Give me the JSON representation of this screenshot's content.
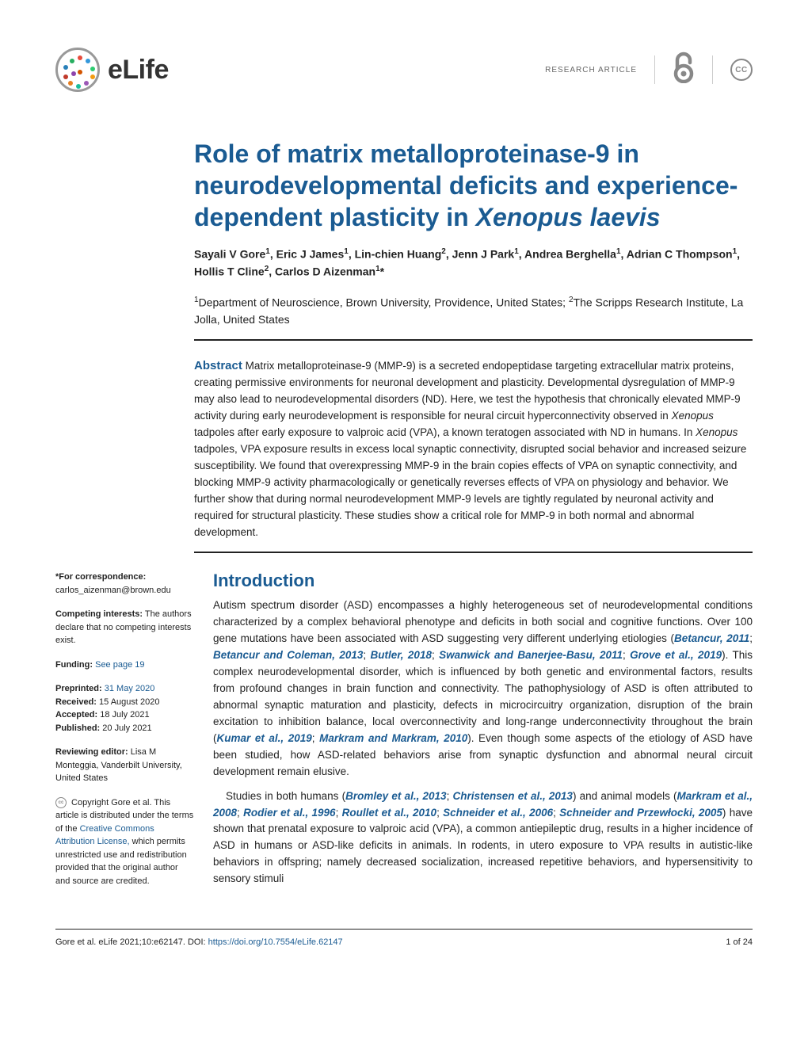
{
  "header": {
    "journal_name": "eLife",
    "article_type": "RESEARCH ARTICLE",
    "cc_label": "CC",
    "logo_colors": [
      "#e74c3c",
      "#3498db",
      "#2ecc71",
      "#f39c12",
      "#9b59b6",
      "#1abc9c",
      "#e67e22",
      "#c0392b",
      "#2980b9",
      "#27ae60",
      "#d35400",
      "#8e44ad"
    ]
  },
  "title": {
    "main": "Role of matrix metalloproteinase-9 in neurodevelopmental deficits and experience-dependent plasticity in ",
    "italic": "Xenopus laevis"
  },
  "authors_html": "Sayali V Gore<sup>1</sup>, Eric J James<sup>1</sup>, Lin-chien Huang<sup>2</sup>, Jenn J Park<sup>1</sup>, Andrea Berghella<sup>1</sup>, Adrian C Thompson<sup>1</sup>, Hollis T Cline<sup>2</sup>, Carlos D Aizenman<sup>1</sup>*",
  "affiliations_html": "<sup>1</sup>Department of Neuroscience, Brown University, Providence, United States; <sup>2</sup>The Scripps Research Institute, La Jolla, United States",
  "abstract": {
    "label": "Abstract",
    "text_1": " Matrix metalloproteinase-9 (MMP-9) is a secreted endopeptidase targeting extracellular matrix proteins, creating permissive environments for neuronal development and plasticity. Developmental dysregulation of MMP-9 may also lead to neurodevelopmental disorders (ND). Here, we test the hypothesis that chronically elevated MMP-9 activity during early neurodevelopment is responsible for neural circuit hyperconnectivity observed in ",
    "italic_1": "Xenopus",
    "text_2": " tadpoles after early exposure to valproic acid (VPA), a known teratogen associated with ND in humans. In ",
    "italic_2": "Xenopus",
    "text_3": " tadpoles, VPA exposure results in excess local synaptic connectivity, disrupted social behavior and increased seizure susceptibility. We found that overexpressing MMP-9 in the brain copies effects of VPA on synaptic connectivity, and blocking MMP-9 activity pharmacologically or genetically reverses effects of VPA on physiology and behavior. We further show that during normal neurodevelopment MMP-9 levels are tightly regulated by neuronal activity and required for structural plasticity. These studies show a critical role for MMP-9 in both normal and abnormal development."
  },
  "sidebar": {
    "correspondence_label": "*For correspondence:",
    "correspondence_value": "carlos_aizenman@brown.edu",
    "competing_label": "Competing interests:",
    "competing_value": " The authors declare that no competing interests exist.",
    "funding_label": "Funding:",
    "funding_link": " See page 19",
    "preprinted_label": "Preprinted:",
    "preprinted_value": " 31 May 2020",
    "received_label": "Received:",
    "received_value": " 15 August 2020",
    "accepted_label": "Accepted:",
    "accepted_value": " 18 July 2021",
    "published_label": "Published:",
    "published_value": " 20 July 2021",
    "reviewing_label": "Reviewing editor:",
    "reviewing_value": "  Lisa M Monteggia, Vanderbilt University, United States",
    "copyright_text_1": " Copyright Gore et al. This article is distributed under the terms of the ",
    "copyright_link": "Creative Commons Attribution License,",
    "copyright_text_2": " which permits unrestricted use and redistribution provided that the original author and source are credited.",
    "cc_badge": "cc"
  },
  "intro": {
    "heading": "Introduction",
    "p1_a": "Autism spectrum disorder (ASD) encompasses a highly heterogeneous set of neurodevelopmental conditions characterized by a complex behavioral phenotype and deficits in both social and cognitive functions. Over 100 gene mutations have been associated with ASD suggesting very different underlying etiologies (",
    "p1_c1": "Betancur, 2011",
    "p1_b": "; ",
    "p1_c2": "Betancur and Coleman, 2013",
    "p1_c": "; ",
    "p1_c3": "Butler, 2018",
    "p1_d": "; ",
    "p1_c4": "Swanwick and Banerjee-Basu, 2011",
    "p1_e": "; ",
    "p1_c5": "Grove et al., 2019",
    "p1_f": "). This complex neurodevelopmental disorder, which is influenced by both genetic and environmental factors, results from profound changes in brain function and connectivity. The pathophysiology of ASD is often attributed to abnormal synaptic maturation and plasticity, defects in microcircuitry organization, disruption of the brain excitation to inhibition balance, local overconnectivity and long-range underconnectivity throughout the brain (",
    "p1_c6": "Kumar et al., 2019",
    "p1_g": "; ",
    "p1_c7": "Markram and Markram, 2010",
    "p1_h": "). Even though some aspects of the etiology of ASD have been studied, how ASD-related behaviors arise from synaptic dysfunction and abnormal neural circuit development remain elusive.",
    "p2_a": "Studies in both humans (",
    "p2_c1": "Bromley et al., 2013",
    "p2_b": "; ",
    "p2_c2": "Christensen et al., 2013",
    "p2_c": ") and animal models (",
    "p2_c3": "Markram et al., 2008",
    "p2_d": "; ",
    "p2_c4": "Rodier et al., 1996",
    "p2_e": "; ",
    "p2_c5": "Roullet et al., 2010",
    "p2_f": "; ",
    "p2_c6": "Schneider et al., 2006",
    "p2_g": "; ",
    "p2_c7": "Schneider and Przewłocki, 2005",
    "p2_h": ") have shown that prenatal exposure to valproic acid (VPA), a common antiepileptic drug, results in a higher incidence of ASD in humans or ASD-like deficits in animals. In rodents, in utero exposure to VPA results in autistic-like behaviors in offspring; namely decreased socialization, increased repetitive behaviors, and hypersensitivity to sensory stimuli"
  },
  "footer": {
    "citation": "Gore et al. eLife 2021;10:e62147. ",
    "doi_label": "DOI: ",
    "doi": "https://doi.org/10.7554/eLife.62147",
    "page": "1 of 24"
  },
  "colors": {
    "accent": "#1a5b92",
    "text": "#222222",
    "muted": "#888888"
  }
}
